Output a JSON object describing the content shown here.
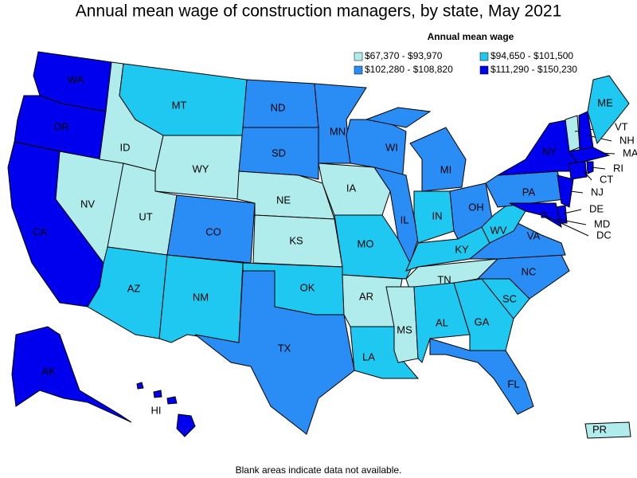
{
  "title": "Annual mean wage of construction managers, by state, May 2021",
  "legend": {
    "title": "Annual mean wage",
    "bins": [
      {
        "label": "$67,370 - $93,970",
        "color": "#b0ecec"
      },
      {
        "label": "$94,650 - $101,500",
        "color": "#1ec8f0"
      },
      {
        "label": "$102,280 - $108,820",
        "color": "#2a8cf5"
      },
      {
        "label": "$111,290 - $150,230",
        "color": "#0000ee"
      }
    ]
  },
  "states": [
    {
      "abbr": "WA",
      "bin": 3
    },
    {
      "abbr": "OR",
      "bin": 3
    },
    {
      "abbr": "CA",
      "bin": 3
    },
    {
      "abbr": "NV",
      "bin": 0
    },
    {
      "abbr": "ID",
      "bin": 0
    },
    {
      "abbr": "MT",
      "bin": 1
    },
    {
      "abbr": "WY",
      "bin": 0
    },
    {
      "abbr": "UT",
      "bin": 0
    },
    {
      "abbr": "AZ",
      "bin": 1
    },
    {
      "abbr": "CO",
      "bin": 2
    },
    {
      "abbr": "NM",
      "bin": 1
    },
    {
      "abbr": "ND",
      "bin": 2
    },
    {
      "abbr": "SD",
      "bin": 2
    },
    {
      "abbr": "NE",
      "bin": 0
    },
    {
      "abbr": "KS",
      "bin": 0
    },
    {
      "abbr": "OK",
      "bin": 1
    },
    {
      "abbr": "TX",
      "bin": 2
    },
    {
      "abbr": "MN",
      "bin": 2
    },
    {
      "abbr": "IA",
      "bin": 0
    },
    {
      "abbr": "MO",
      "bin": 1
    },
    {
      "abbr": "AR",
      "bin": 0
    },
    {
      "abbr": "LA",
      "bin": 1
    },
    {
      "abbr": "WI",
      "bin": 2
    },
    {
      "abbr": "IL",
      "bin": 2
    },
    {
      "abbr": "MI",
      "bin": 2
    },
    {
      "abbr": "IN",
      "bin": 1
    },
    {
      "abbr": "OH",
      "bin": 2
    },
    {
      "abbr": "KY",
      "bin": 1
    },
    {
      "abbr": "TN",
      "bin": 0
    },
    {
      "abbr": "MS",
      "bin": 0
    },
    {
      "abbr": "AL",
      "bin": 1
    },
    {
      "abbr": "GA",
      "bin": 1
    },
    {
      "abbr": "FL",
      "bin": 2
    },
    {
      "abbr": "SC",
      "bin": 1
    },
    {
      "abbr": "NC",
      "bin": 2
    },
    {
      "abbr": "VA",
      "bin": 2
    },
    {
      "abbr": "WV",
      "bin": 1
    },
    {
      "abbr": "PA",
      "bin": 2
    },
    {
      "abbr": "NY",
      "bin": 3
    },
    {
      "abbr": "NJ",
      "bin": 3
    },
    {
      "abbr": "DE",
      "bin": 3
    },
    {
      "abbr": "MD",
      "bin": 3
    },
    {
      "abbr": "DC",
      "bin": 3
    },
    {
      "abbr": "VT",
      "bin": 0
    },
    {
      "abbr": "NH",
      "bin": 3
    },
    {
      "abbr": "MA",
      "bin": 3
    },
    {
      "abbr": "RI",
      "bin": 3
    },
    {
      "abbr": "CT",
      "bin": 3
    },
    {
      "abbr": "ME",
      "bin": 1
    },
    {
      "abbr": "AK",
      "bin": 3
    },
    {
      "abbr": "HI",
      "bin": 3
    },
    {
      "abbr": "PR",
      "bin": 0
    }
  ],
  "footnote": "Blank areas indicate data not available."
}
